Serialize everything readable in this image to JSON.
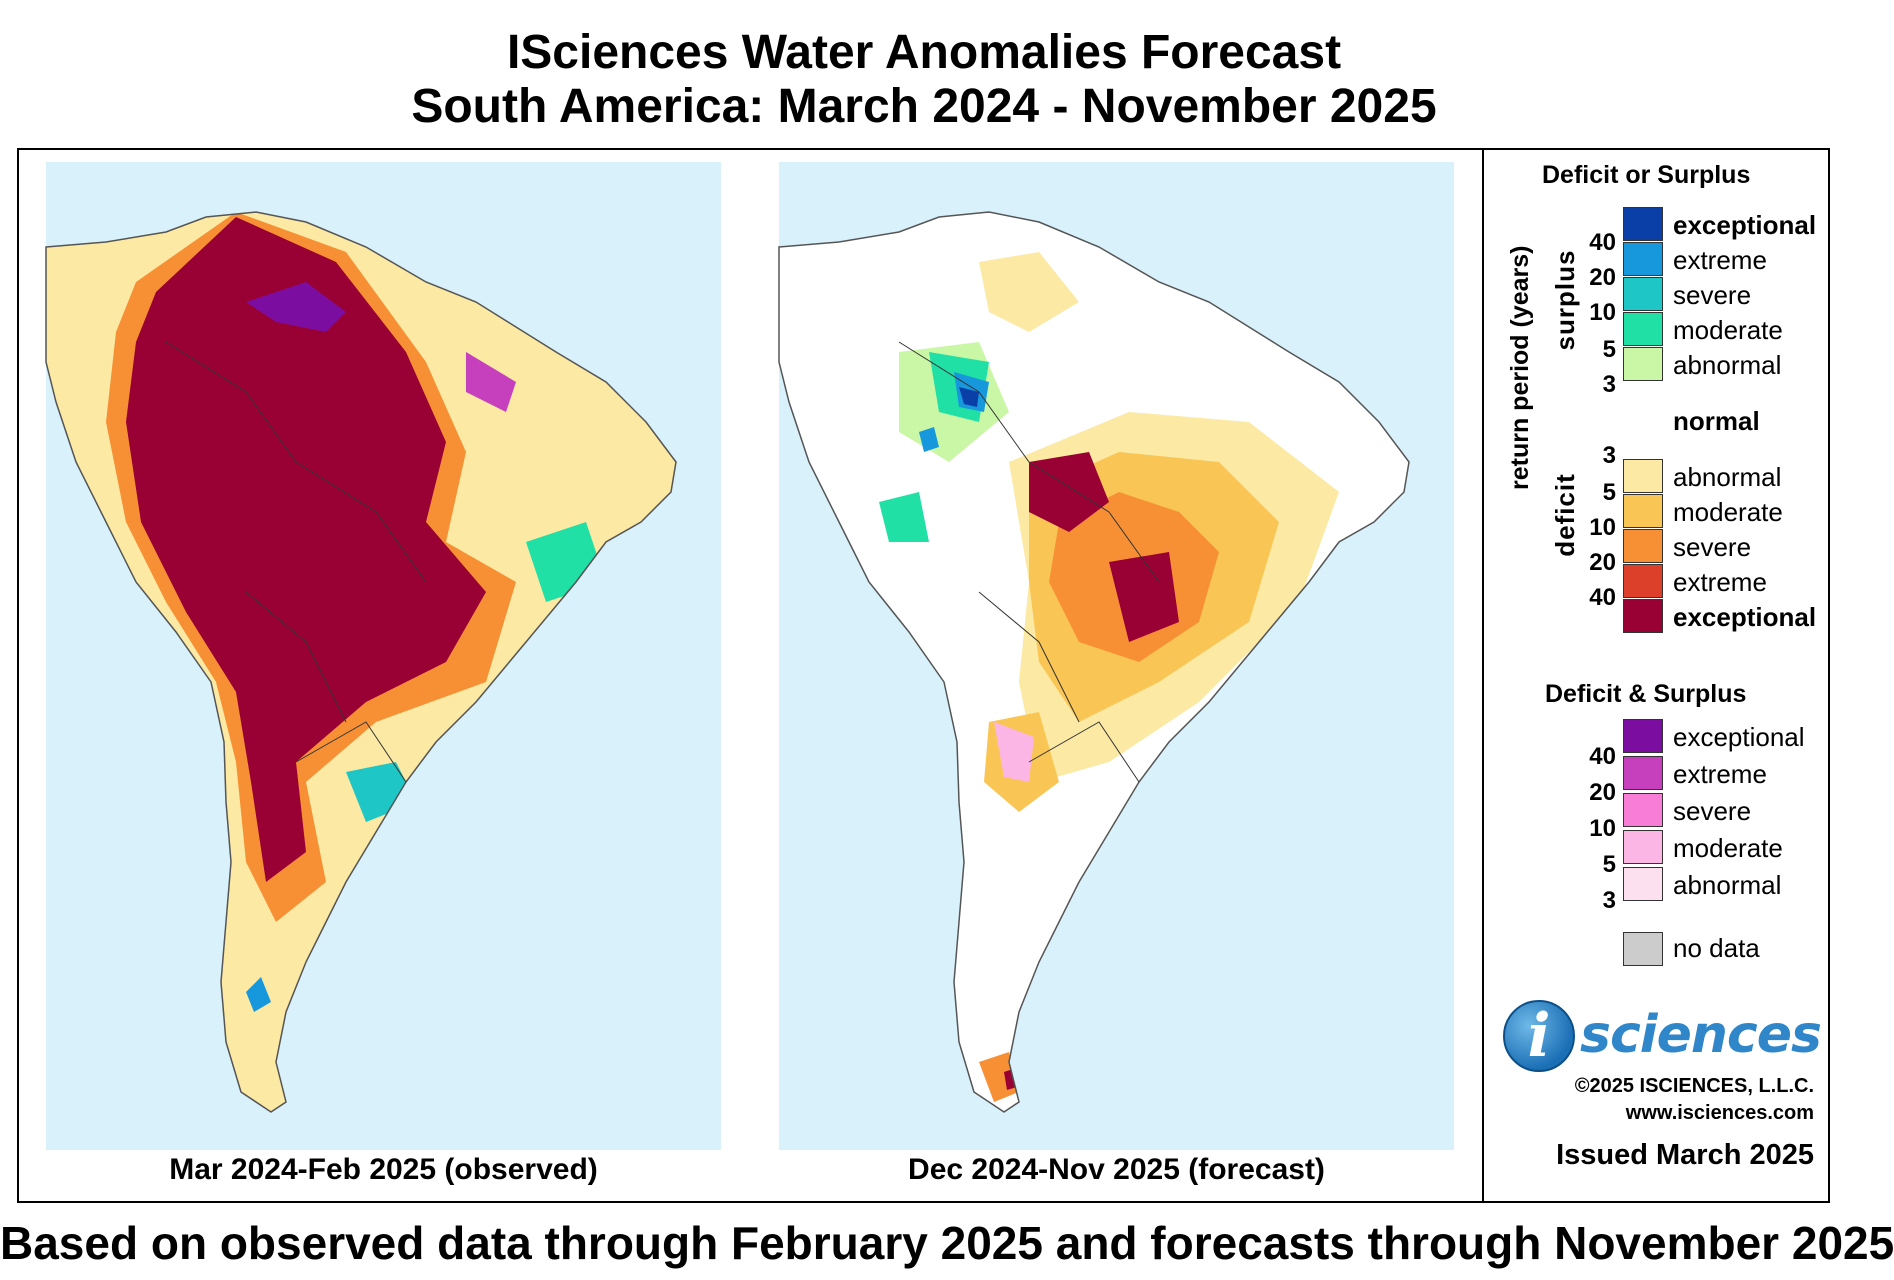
{
  "title": {
    "line1": "ISciences Water Anomalies Forecast",
    "line2": "South America: March 2024 - November 2025"
  },
  "maps": [
    {
      "caption": "Mar 2024-Feb 2025 (observed)"
    },
    {
      "caption": "Dec 2024-Nov 2025 (forecast)"
    }
  ],
  "footer": "Based on observed data through February 2025 and forecasts through November 2025",
  "legend": {
    "section1_title": "Deficit or Surplus",
    "axis_label": "return period (years)",
    "surplus_label": "surplus",
    "deficit_label": "deficit",
    "normal_label": "normal",
    "surplus_levels": [
      {
        "label": "exceptional",
        "color": "#0a3fa8"
      },
      {
        "label": "extreme",
        "color": "#1798dc"
      },
      {
        "label": "severe",
        "color": "#1ec7c5"
      },
      {
        "label": "moderate",
        "color": "#20e0a5"
      },
      {
        "label": "abnormal",
        "color": "#c9f7a6"
      }
    ],
    "surplus_periods": [
      "40",
      "20",
      "10",
      "5",
      "3"
    ],
    "deficit_levels": [
      {
        "label": "abnormal",
        "color": "#fbe9a4"
      },
      {
        "label": "moderate",
        "color": "#f9c655"
      },
      {
        "label": "severe",
        "color": "#f79035"
      },
      {
        "label": "extreme",
        "color": "#dc3f2a"
      },
      {
        "label": "exceptional",
        "color": "#990033"
      }
    ],
    "deficit_periods": [
      "3",
      "5",
      "10",
      "20",
      "40"
    ],
    "section2_title": "Deficit & Surplus",
    "both_levels": [
      {
        "label": "exceptional",
        "color": "#7b0ea0"
      },
      {
        "label": "extreme",
        "color": "#c640bd"
      },
      {
        "label": "severe",
        "color": "#f77dd6"
      },
      {
        "label": "moderate",
        "color": "#fbb6e6"
      },
      {
        "label": "abnormal",
        "color": "#fde0f0"
      }
    ],
    "both_periods": [
      "40",
      "20",
      "10",
      "5",
      "3"
    ],
    "no_data_label": "no data",
    "no_data_color": "#cccccc"
  },
  "branding": {
    "logo_letter": "i",
    "logo_text": "sciences",
    "copyright": "©2025 ISCIENCES, L.L.C.",
    "website": "www.isciences.com",
    "issued": "Issued March 2025"
  }
}
